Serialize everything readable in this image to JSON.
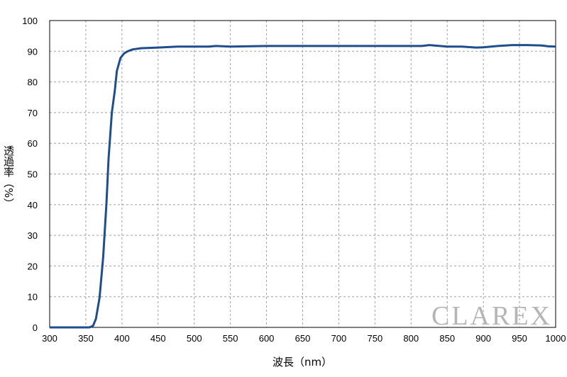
{
  "chart_data": {
    "type": "line",
    "title": "",
    "xlabel": "波長（nm）",
    "ylabel": "透過率（%）",
    "xlim": [
      300,
      1000
    ],
    "ylim": [
      0,
      100
    ],
    "xticks": [
      300,
      350,
      400,
      450,
      500,
      550,
      600,
      650,
      700,
      750,
      800,
      850,
      900,
      950,
      1000
    ],
    "yticks": [
      0,
      10,
      20,
      30,
      40,
      50,
      60,
      70,
      80,
      90,
      100
    ],
    "grid": true,
    "grid_style": "dashed",
    "line_color": "#1f4e8c",
    "series": [
      {
        "x": [
          300,
          355,
          360,
          364,
          369,
          374,
          378.5,
          381.5,
          386,
          390,
          393,
          398,
          403,
          408,
          415,
          427,
          450,
          477,
          500,
          520,
          530,
          550,
          600,
          650,
          700,
          750,
          800,
          815,
          825,
          840,
          850,
          870,
          890,
          900,
          920,
          940,
          960,
          980,
          990,
          1000
        ],
        "y": [
          0,
          0,
          0.5,
          2.8,
          9.7,
          22.9,
          40.4,
          55,
          70,
          77,
          83.6,
          87.8,
          89.3,
          90,
          90.6,
          91,
          91.2,
          91.5,
          91.5,
          91.5,
          91.7,
          91.5,
          91.7,
          91.7,
          91.7,
          91.7,
          91.7,
          91.7,
          92,
          91.7,
          91.5,
          91.5,
          91.2,
          91.3,
          91.7,
          92,
          92,
          91.9,
          91.6,
          91.5
        ]
      }
    ],
    "watermark": "CLAREX"
  }
}
